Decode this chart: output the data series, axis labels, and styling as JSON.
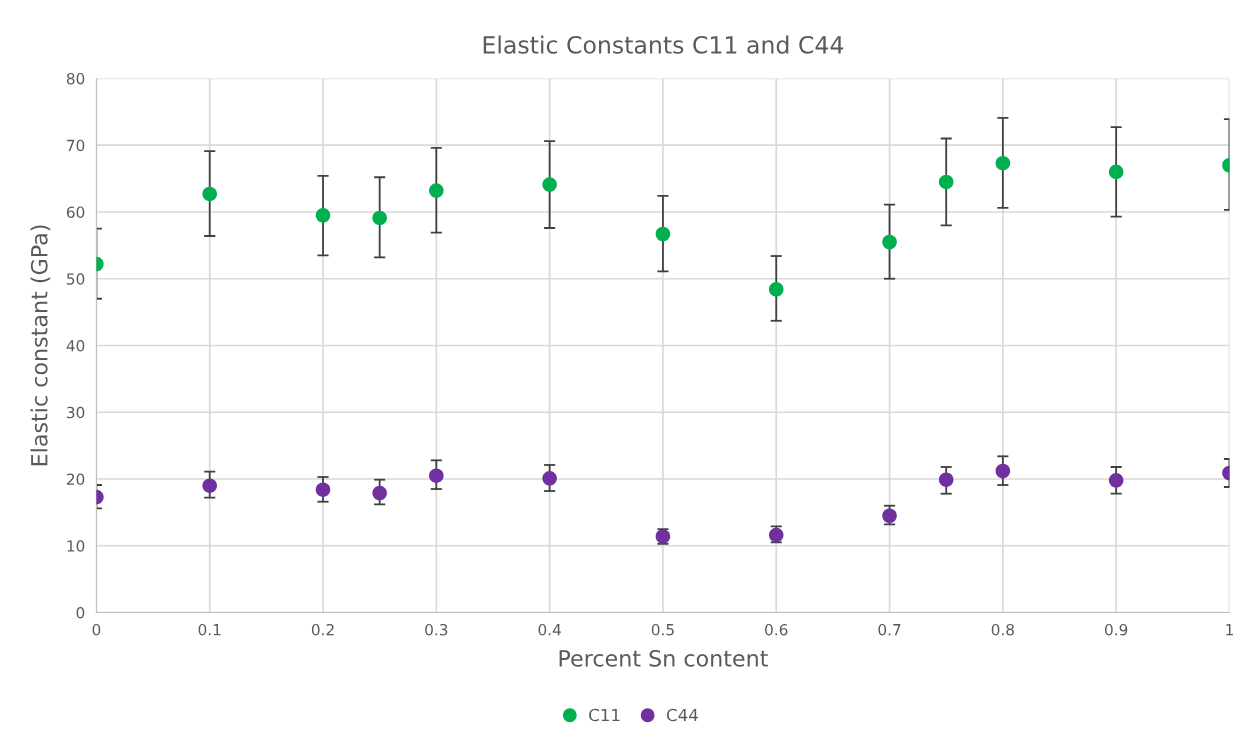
{
  "chart_data": {
    "type": "scatter",
    "title": "Elastic Constants C11 and C44",
    "xlabel": "Percent Sn content",
    "ylabel": "Elastic constant (GPa)",
    "x": [
      0,
      0.1,
      0.2,
      0.25,
      0.3,
      0.4,
      0.5,
      0.6,
      0.7,
      0.75,
      0.8,
      0.9,
      1
    ],
    "series": [
      {
        "name": "C11",
        "color": "#00b050",
        "values": [
          52.2,
          62.7,
          59.5,
          59.1,
          63.2,
          64.1,
          56.7,
          48.4,
          55.5,
          64.5,
          67.3,
          66.0,
          67.0
        ],
        "errors": [
          [
            47.0,
            57.5
          ],
          [
            56.4,
            69.1
          ],
          [
            53.5,
            65.4
          ],
          [
            53.2,
            65.2
          ],
          [
            56.9,
            69.6
          ],
          [
            57.6,
            70.6
          ],
          [
            51.1,
            62.4
          ],
          [
            43.7,
            53.4
          ],
          [
            50.0,
            61.1
          ],
          [
            58.0,
            71.0
          ],
          [
            60.6,
            74.1
          ],
          [
            59.3,
            72.7
          ],
          [
            60.3,
            73.9
          ]
        ]
      },
      {
        "name": "C44",
        "color": "#7030a0",
        "values": [
          17.3,
          19.0,
          18.4,
          17.9,
          20.5,
          20.1,
          11.4,
          11.6,
          14.5,
          19.9,
          21.2,
          19.8,
          20.9
        ],
        "errors": [
          [
            15.6,
            19.1
          ],
          [
            17.2,
            21.1
          ],
          [
            16.6,
            20.3
          ],
          [
            16.2,
            19.9
          ],
          [
            18.5,
            22.8
          ],
          [
            18.2,
            22.1
          ],
          [
            10.3,
            12.5
          ],
          [
            10.5,
            12.9
          ],
          [
            13.2,
            16.0
          ],
          [
            17.8,
            21.8
          ],
          [
            19.1,
            23.4
          ],
          [
            17.8,
            21.8
          ],
          [
            18.8,
            23.0
          ]
        ]
      }
    ],
    "xlim": [
      0,
      1
    ],
    "xticks": [
      0,
      0.1,
      0.2,
      0.3,
      0.4,
      0.5,
      0.6,
      0.7,
      0.8,
      0.9,
      1
    ],
    "ylim": [
      0,
      80
    ],
    "yticks": [
      0,
      10,
      20,
      30,
      40,
      50,
      60,
      70,
      80
    ],
    "grid": true,
    "legend": "bottom",
    "marker": "circle"
  }
}
